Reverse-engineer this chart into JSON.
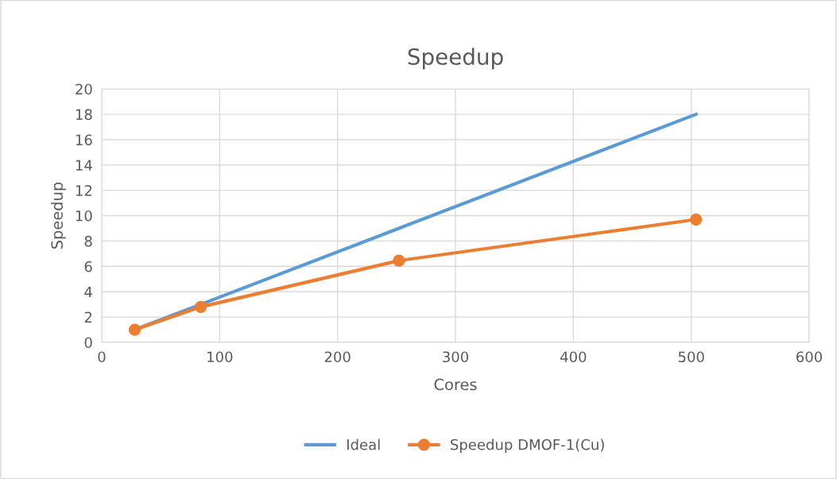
{
  "chart_data": {
    "type": "line",
    "title": "Speedup",
    "xlabel": "Cores",
    "ylabel": "Speedup",
    "series": [
      {
        "name": "Ideal",
        "color": "#5b9bd5",
        "x": [
          28,
          84,
          252,
          504
        ],
        "values": [
          1,
          3,
          9,
          18
        ],
        "marker": "none"
      },
      {
        "name": "Speedup DMOF-1(Cu)",
        "color": "#ed7d31",
        "x": [
          28,
          84,
          252,
          504
        ],
        "values": [
          1,
          2.8,
          6.45,
          9.7
        ],
        "marker": "circle"
      }
    ],
    "xlim": [
      0,
      600
    ],
    "xticks": [
      0,
      100,
      200,
      300,
      400,
      500,
      600
    ],
    "ylim": [
      0,
      20
    ],
    "yticks": [
      0,
      2,
      4,
      6,
      8,
      10,
      12,
      14,
      16,
      18,
      20
    ],
    "grid": true,
    "legend": "bottom",
    "line_style": "solid"
  }
}
